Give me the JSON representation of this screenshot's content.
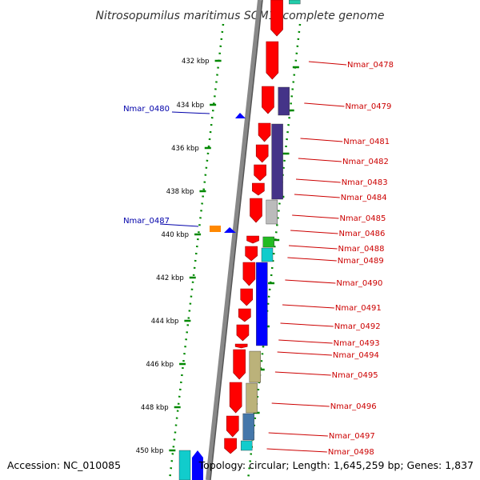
{
  "title": "Nitrosopumilus maritimus SCM1, complete genome",
  "footer": {
    "accession": "Accession: NC_010085",
    "summary": "Topology: circular; Length: 1,645,259 bp; Genes: 1,837"
  },
  "ticks": [
    "432 kbp",
    "434 kbp",
    "436 kbp",
    "438 kbp",
    "440 kbp",
    "442 kbp",
    "444 kbp",
    "446 kbp",
    "448 kbp",
    "450 kbp"
  ],
  "right_labels": [
    "Nmar_0478",
    "Nmar_0479",
    "Nmar_0481",
    "Nmar_0482",
    "Nmar_0483",
    "Nmar_0484",
    "Nmar_0485",
    "Nmar_0486",
    "Nmar_0488",
    "Nmar_0489",
    "Nmar_0490",
    "Nmar_0491",
    "Nmar_0492",
    "Nmar_0493",
    "Nmar_0494",
    "Nmar_0495",
    "Nmar_0496",
    "Nmar_0497",
    "Nmar_0498"
  ],
  "left_labels": [
    "Nmar_0480",
    "Nmar_0487"
  ],
  "colors": {
    "forward_gene": "#ff0000",
    "reverse_gene": "#0000ff",
    "backbone": "#888888",
    "scale_dots": "#008800",
    "right_label": "#cc0000",
    "left_label": "#0000aa"
  }
}
